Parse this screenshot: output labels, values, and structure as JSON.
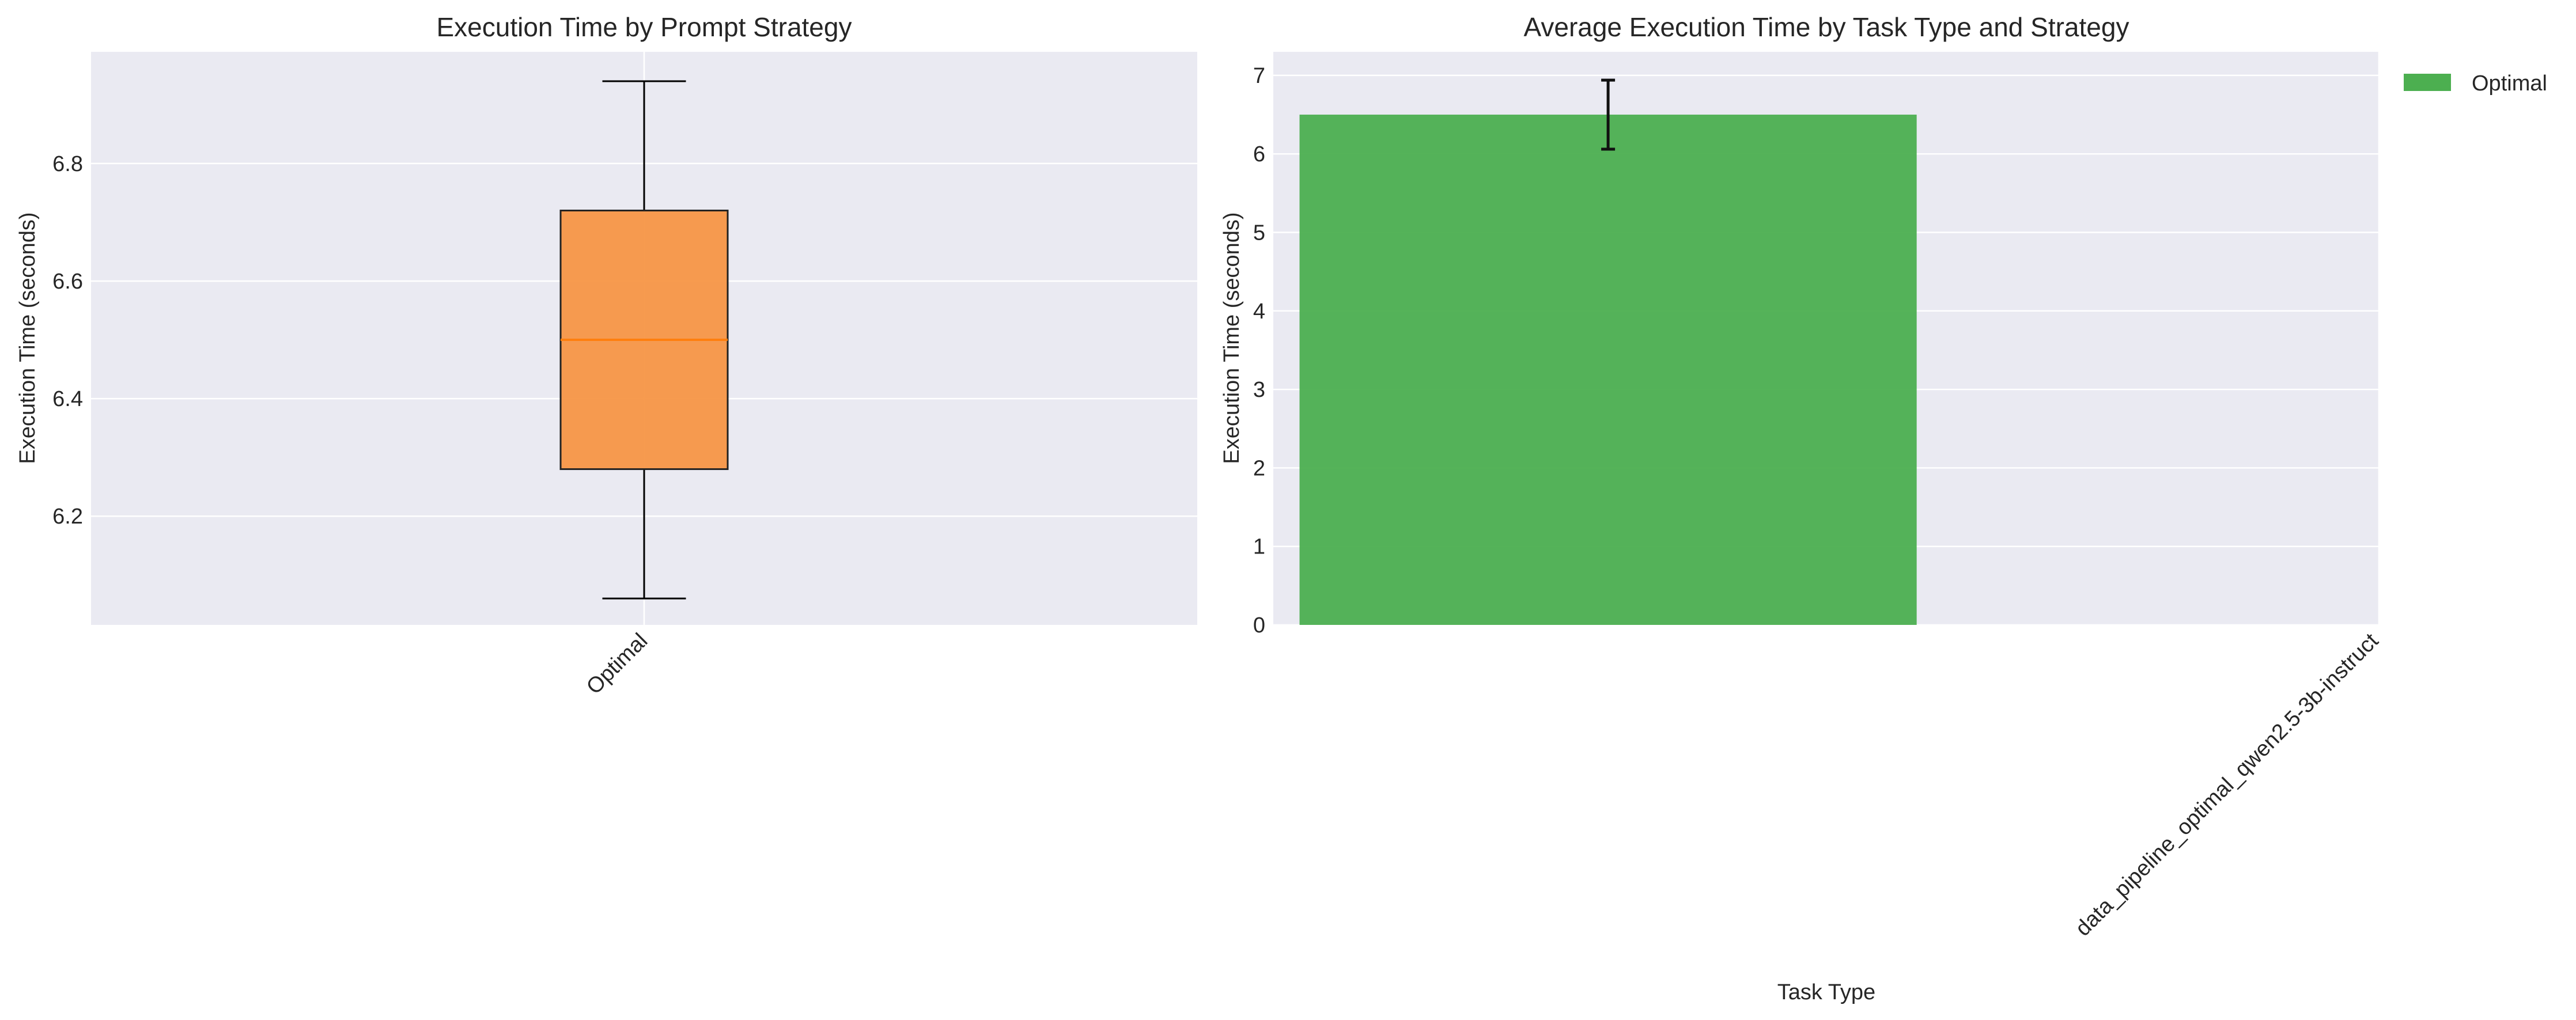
{
  "chart_data": [
    {
      "type": "box",
      "title": "Execution Time by Prompt Strategy",
      "xlabel": "",
      "ylabel": "Execution Time (seconds)",
      "ylim": [
        6.015,
        6.99
      ],
      "yticks": [
        6.2,
        6.4,
        6.6,
        6.8
      ],
      "grid": true,
      "categories": [
        "Optimal"
      ],
      "boxes": [
        {
          "label": "Optimal",
          "whisker_low": 6.06,
          "q1": 6.28,
          "median": 6.5,
          "q3": 6.72,
          "whisker_high": 6.94,
          "color": "#F79646",
          "median_color": "#FF7F0E"
        }
      ]
    },
    {
      "type": "bar",
      "title": "Average Execution Time by Task Type and Strategy",
      "xlabel": "Task Type",
      "ylabel": "Execution Time (seconds)",
      "ylim": [
        0,
        7.3
      ],
      "yticks": [
        0,
        1,
        2,
        3,
        4,
        5,
        6,
        7
      ],
      "grid": true,
      "categories": [
        "data_pipeline_optimal_qwen2.5-3b-instruct"
      ],
      "series": [
        {
          "name": "Optimal",
          "values": [
            6.5
          ],
          "error": [
            0.44
          ],
          "color": "#4CAF50"
        }
      ],
      "legend_position": "upper right, outside plot"
    }
  ],
  "colors": {
    "plot_background": "#EAEAF2",
    "grid": "#FFFFFF",
    "text": "#262626"
  }
}
